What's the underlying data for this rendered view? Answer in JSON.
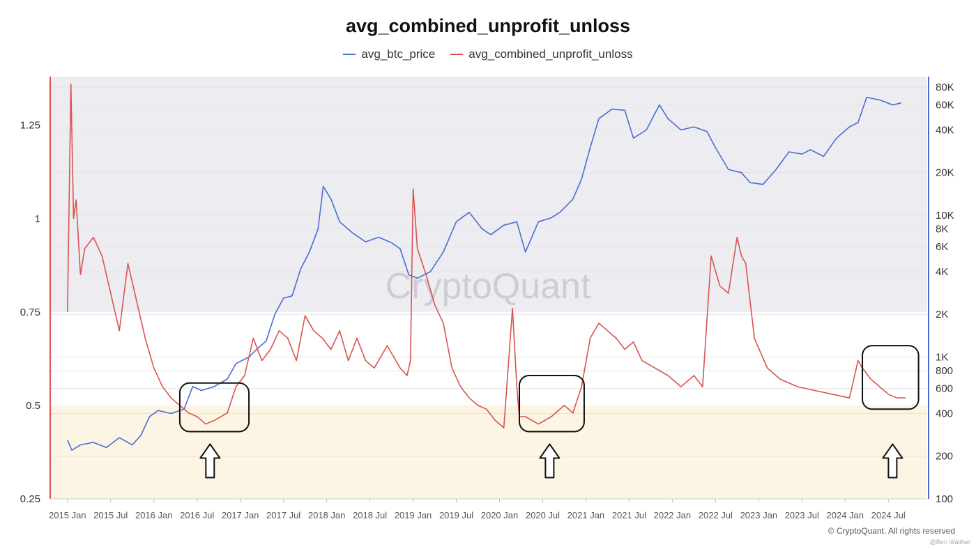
{
  "title": "avg_combined_unprofit_unloss",
  "legend": [
    {
      "label": "avg_btc_price",
      "color": "#4a6cd4"
    },
    {
      "label": "avg_combined_unprofit_unloss",
      "color": "#d9534f"
    }
  ],
  "watermark": "CryptoQuant",
  "footer": "© CryptoQuant. All rights reserved",
  "attribution": "@Ben Walther",
  "chart_data": {
    "type": "line",
    "title": "avg_combined_unprofit_unloss",
    "x_ticks": [
      "2015 Jan",
      "2015 Jul",
      "2016 Jan",
      "2016 Jul",
      "2017 Jan",
      "2017 Jul",
      "2018 Jan",
      "2018 Jul",
      "2019 Jan",
      "2019 Jul",
      "2020 Jan",
      "2020 Jul",
      "2021 Jan",
      "2021 Jul",
      "2022 Jan",
      "2022 Jul",
      "2023 Jan",
      "2023 Jul",
      "2024 Jan",
      "2024 Jul"
    ],
    "y_left": {
      "ticks": [
        "0.25",
        "0.5",
        "0.75",
        "1",
        "1.25"
      ],
      "range": [
        0.25,
        1.38
      ]
    },
    "y_right": {
      "scale": "log",
      "ticks": [
        "100",
        "200",
        "400",
        "600",
        "800",
        "1K",
        "2K",
        "4K",
        "6K",
        "8K",
        "10K",
        "20K",
        "40K",
        "60K",
        "80K"
      ],
      "range": [
        100,
        95000
      ]
    },
    "bands": [
      {
        "axis": "left",
        "from": 0.75,
        "to": 1.38,
        "color": "#ededf1"
      },
      {
        "axis": "left",
        "from": 0.25,
        "to": 0.5,
        "color": "#fdf5e3"
      }
    ],
    "series": [
      {
        "name": "avg_btc_price",
        "axis": "right",
        "color": "#4a6cd4",
        "x": [
          2015.0,
          2015.05,
          2015.15,
          2015.3,
          2015.45,
          2015.6,
          2015.75,
          2015.85,
          2015.95,
          2016.05,
          2016.2,
          2016.35,
          2016.45,
          2016.55,
          2016.7,
          2016.85,
          2016.95,
          2017.1,
          2017.2,
          2017.3,
          2017.4,
          2017.5,
          2017.6,
          2017.7,
          2017.8,
          2017.9,
          2017.96,
          2018.05,
          2018.15,
          2018.3,
          2018.45,
          2018.6,
          2018.75,
          2018.85,
          2018.95,
          2019.05,
          2019.2,
          2019.35,
          2019.5,
          2019.65,
          2019.8,
          2019.9,
          2020.05,
          2020.2,
          2020.3,
          2020.45,
          2020.6,
          2020.7,
          2020.85,
          2020.95,
          2021.05,
          2021.15,
          2021.3,
          2021.45,
          2021.55,
          2021.7,
          2021.85,
          2021.95,
          2022.1,
          2022.25,
          2022.4,
          2022.5,
          2022.65,
          2022.8,
          2022.9,
          2023.05,
          2023.2,
          2023.35,
          2023.5,
          2023.6,
          2023.75,
          2023.9,
          2024.05,
          2024.15,
          2024.25,
          2024.4,
          2024.55,
          2024.65
        ],
        "values": [
          260,
          220,
          240,
          250,
          230,
          270,
          240,
          280,
          380,
          420,
          400,
          430,
          620,
          580,
          620,
          700,
          900,
          1000,
          1150,
          1300,
          2000,
          2600,
          2700,
          4200,
          5500,
          8000,
          16000,
          13000,
          9000,
          7500,
          6500,
          7000,
          6400,
          5800,
          3800,
          3600,
          4000,
          5500,
          9000,
          10500,
          8000,
          7300,
          8500,
          9000,
          5500,
          9000,
          9600,
          10500,
          13000,
          18000,
          30000,
          48000,
          56000,
          55000,
          35000,
          40000,
          60000,
          48000,
          40000,
          42000,
          39000,
          30000,
          21000,
          20000,
          17000,
          16500,
          21000,
          28000,
          27000,
          29000,
          26000,
          35000,
          42000,
          45000,
          68000,
          65000,
          60000,
          62000
        ]
      },
      {
        "name": "avg_combined_unprofit_unloss",
        "axis": "left",
        "color": "#d9534f",
        "x": [
          2015.0,
          2015.04,
          2015.07,
          2015.1,
          2015.15,
          2015.2,
          2015.3,
          2015.4,
          2015.5,
          2015.6,
          2015.7,
          2015.8,
          2015.9,
          2016.0,
          2016.1,
          2016.2,
          2016.3,
          2016.4,
          2016.5,
          2016.6,
          2016.7,
          2016.85,
          2016.95,
          2017.05,
          2017.15,
          2017.25,
          2017.35,
          2017.45,
          2017.55,
          2017.65,
          2017.75,
          2017.85,
          2017.95,
          2018.05,
          2018.15,
          2018.25,
          2018.35,
          2018.45,
          2018.55,
          2018.7,
          2018.85,
          2018.93,
          2018.97,
          2019.0,
          2019.05,
          2019.15,
          2019.25,
          2019.35,
          2019.45,
          2019.55,
          2019.65,
          2019.75,
          2019.85,
          2019.95,
          2020.05,
          2020.15,
          2020.2,
          2020.23,
          2020.3,
          2020.45,
          2020.6,
          2020.75,
          2020.85,
          2020.95,
          2021.05,
          2021.15,
          2021.25,
          2021.35,
          2021.45,
          2021.55,
          2021.65,
          2021.8,
          2021.95,
          2022.1,
          2022.25,
          2022.35,
          2022.45,
          2022.55,
          2022.65,
          2022.75,
          2022.8,
          2022.85,
          2022.95,
          2023.1,
          2023.25,
          2023.45,
          2023.65,
          2023.85,
          2024.05,
          2024.15,
          2024.2,
          2024.3,
          2024.4,
          2024.5,
          2024.6,
          2024.7
        ],
        "values": [
          0.75,
          1.36,
          1.0,
          1.05,
          0.85,
          0.92,
          0.95,
          0.9,
          0.8,
          0.7,
          0.88,
          0.78,
          0.68,
          0.6,
          0.55,
          0.52,
          0.5,
          0.48,
          0.47,
          0.45,
          0.46,
          0.48,
          0.55,
          0.58,
          0.68,
          0.62,
          0.65,
          0.7,
          0.68,
          0.62,
          0.74,
          0.7,
          0.68,
          0.65,
          0.7,
          0.62,
          0.68,
          0.62,
          0.6,
          0.66,
          0.6,
          0.58,
          0.62,
          1.08,
          0.92,
          0.85,
          0.77,
          0.72,
          0.6,
          0.55,
          0.52,
          0.5,
          0.49,
          0.46,
          0.44,
          0.76,
          0.55,
          0.47,
          0.47,
          0.45,
          0.47,
          0.5,
          0.48,
          0.55,
          0.68,
          0.72,
          0.7,
          0.68,
          0.65,
          0.67,
          0.62,
          0.6,
          0.58,
          0.55,
          0.58,
          0.55,
          0.9,
          0.82,
          0.8,
          0.95,
          0.9,
          0.88,
          0.68,
          0.6,
          0.57,
          0.55,
          0.54,
          0.53,
          0.52,
          0.62,
          0.6,
          0.57,
          0.55,
          0.53,
          0.52,
          0.52
        ]
      }
    ],
    "annotations": [
      {
        "shape": "rounded-box",
        "x_from": 2016.3,
        "x_to": 2017.1,
        "y_from": 0.43,
        "y_to": 0.56
      },
      {
        "shape": "up-arrow",
        "x": 2016.65
      },
      {
        "shape": "rounded-box",
        "x_from": 2020.23,
        "x_to": 2020.98,
        "y_from": 0.43,
        "y_to": 0.58
      },
      {
        "shape": "up-arrow",
        "x": 2020.58
      },
      {
        "shape": "rounded-box",
        "x_from": 2024.2,
        "x_to": 2024.85,
        "y_from": 0.49,
        "y_to": 0.66
      },
      {
        "shape": "up-arrow",
        "x": 2024.55
      }
    ]
  }
}
